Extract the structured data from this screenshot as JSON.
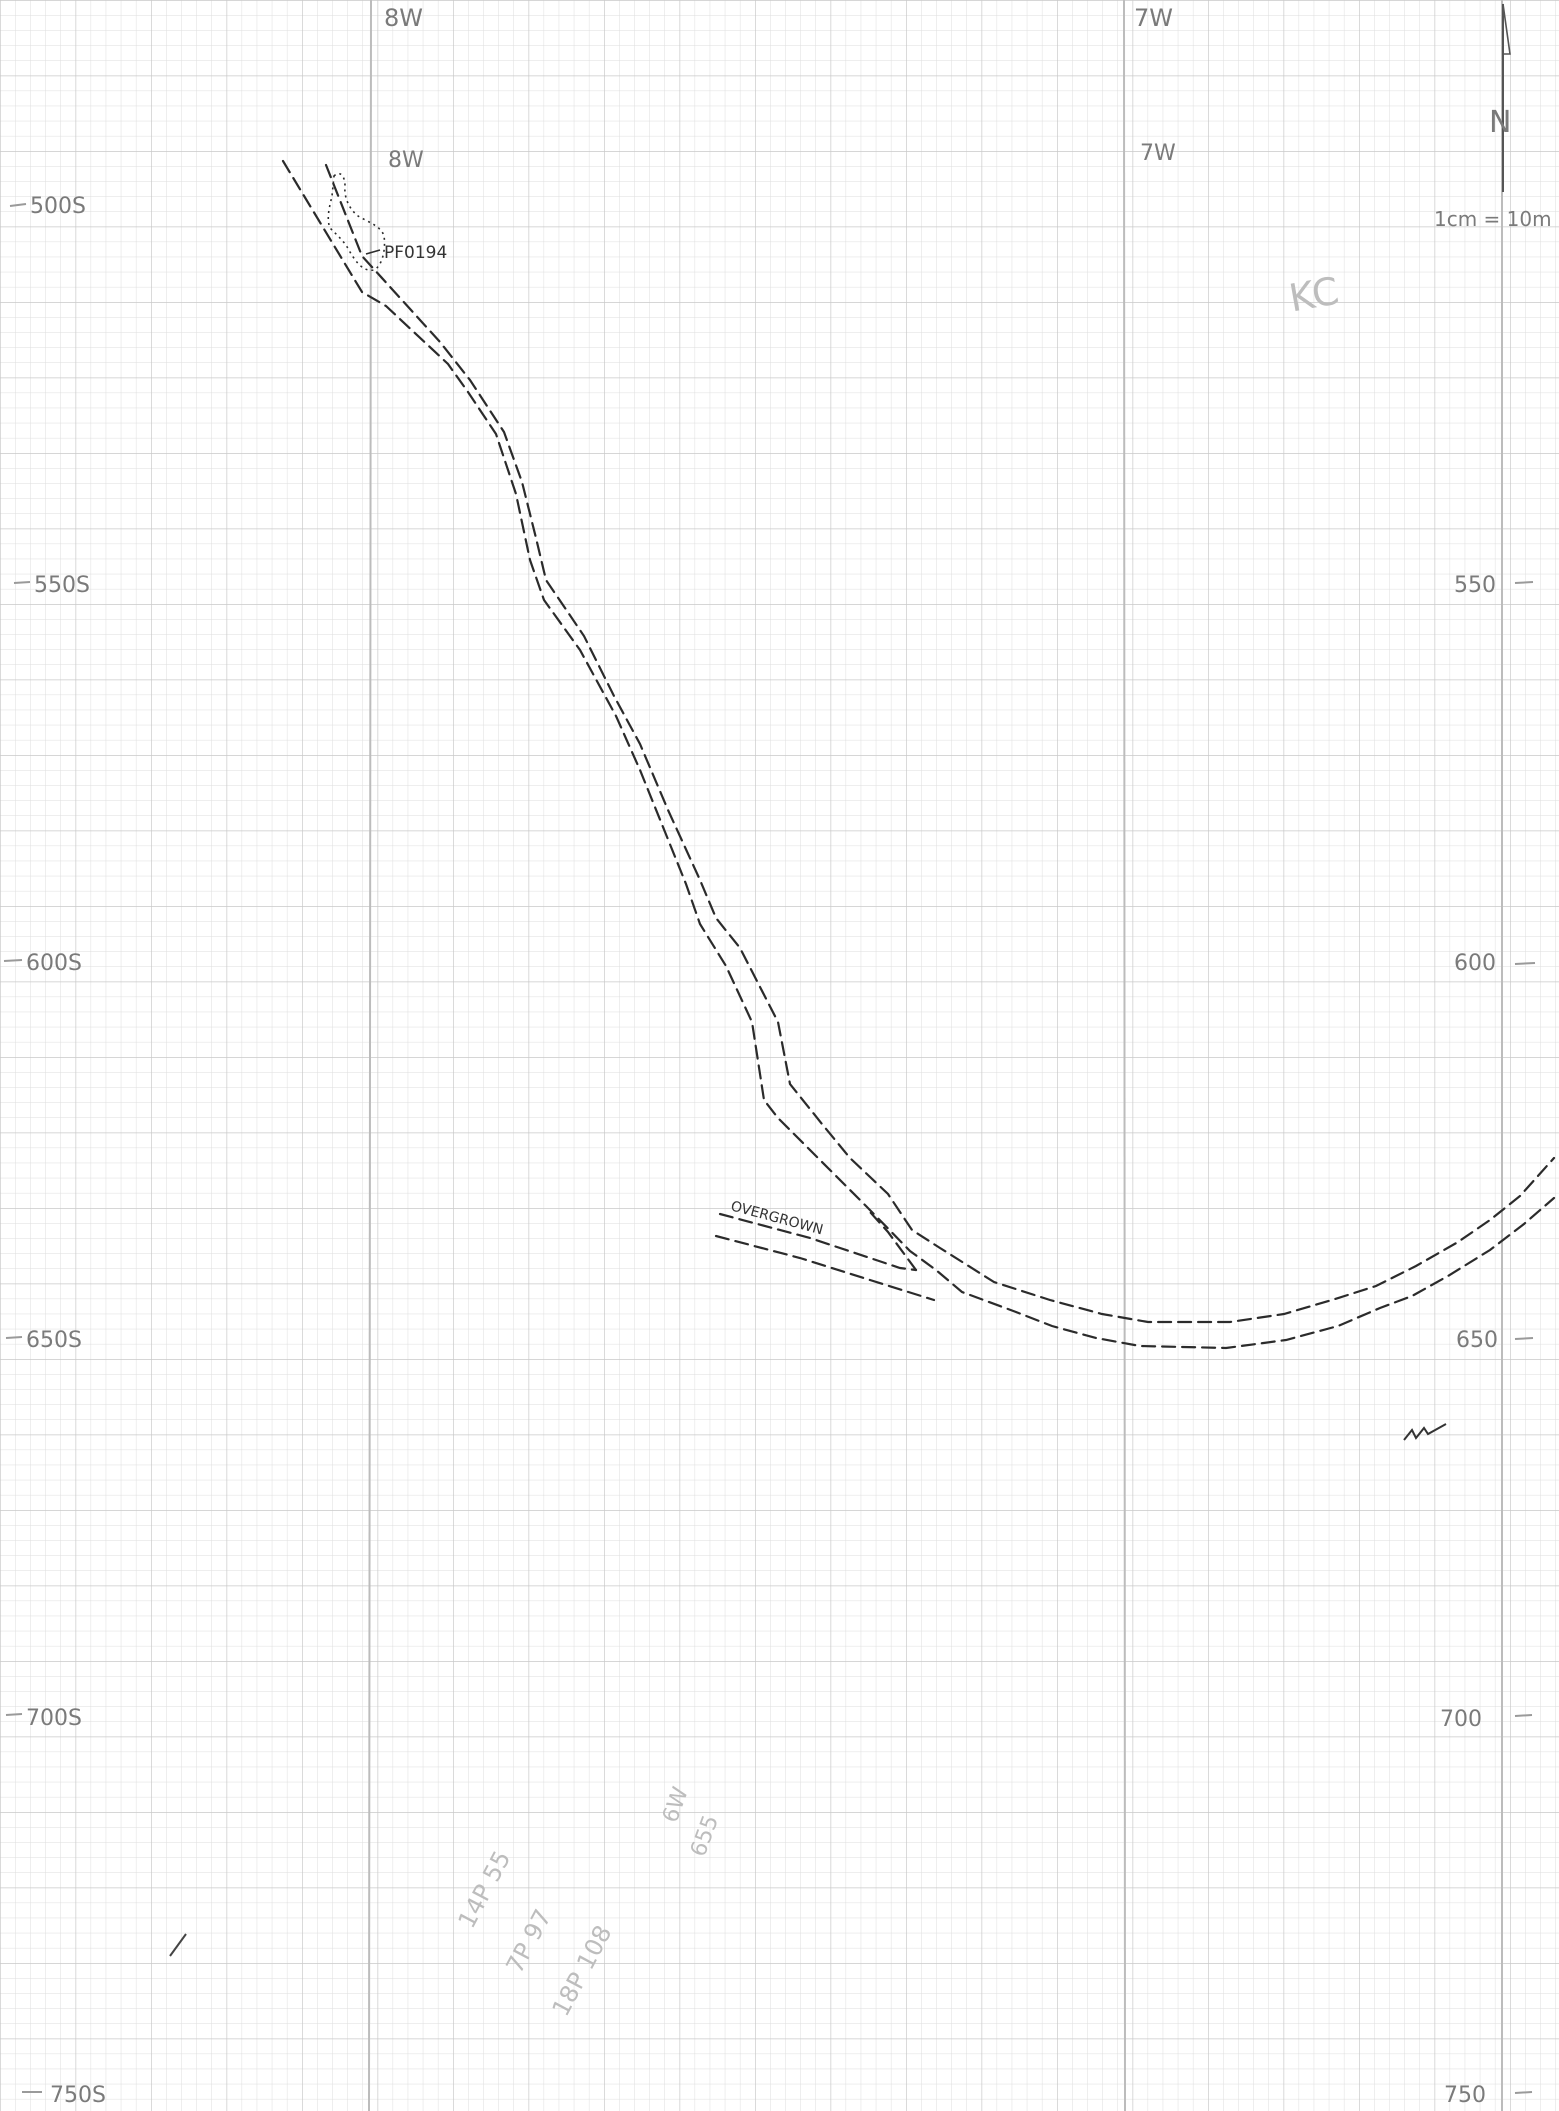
{
  "map": {
    "grid": {
      "minor_step_m": 1,
      "major_step_m": 5,
      "page_background": "#ffffff",
      "minor_color": "#dddddd",
      "major_color": "#c4c4c4",
      "ink_color": "#2b2b2b"
    },
    "top_margin_labels": [
      "8W",
      "7W"
    ],
    "column_labels": [
      "8W",
      "7W"
    ],
    "left_ticks": [
      "500S",
      "550S",
      "600S",
      "650S",
      "700S",
      "750S"
    ],
    "right_ticks": [
      "550",
      "600",
      "650",
      "700",
      "750"
    ],
    "feature_label": "PF0194",
    "scale_text": "1cm = 10m",
    "north_label": "N",
    "track_label": "OVERGROWN",
    "faint_notes": [
      "KC",
      "14P 55",
      "7P 97",
      "18P 108",
      "6W",
      "655"
    ]
  }
}
